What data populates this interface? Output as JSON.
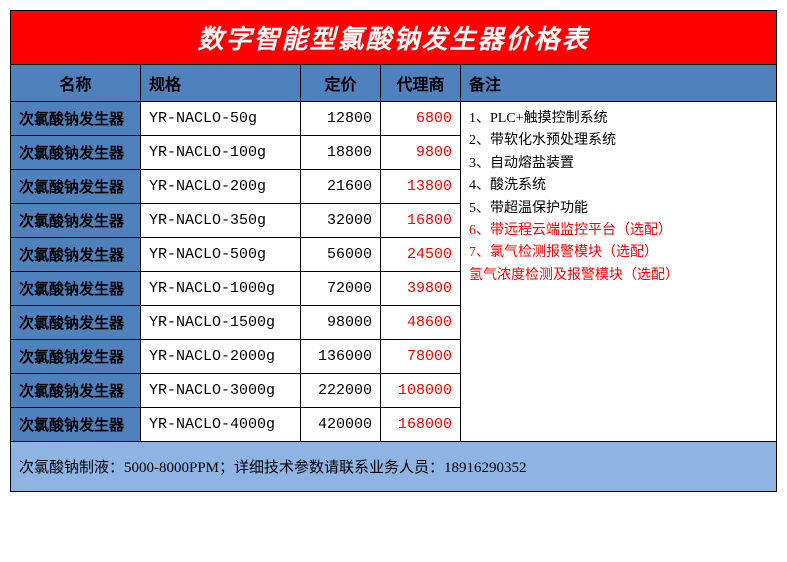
{
  "title": "数字智能型氯酸钠发生器价格表",
  "columns": {
    "name": "名称",
    "spec": "规格",
    "price": "定价",
    "agent": "代理商",
    "remark": "备注"
  },
  "rows": [
    {
      "name": "次氯酸钠发生器",
      "spec": "YR-NACLO-50g",
      "price": "12800",
      "agent": "6800"
    },
    {
      "name": "次氯酸钠发生器",
      "spec": "YR-NACLO-100g",
      "price": "18800",
      "agent": "9800"
    },
    {
      "name": "次氯酸钠发生器",
      "spec": "YR-NACLO-200g",
      "price": "21600",
      "agent": "13800"
    },
    {
      "name": "次氯酸钠发生器",
      "spec": "YR-NACLO-350g",
      "price": "32000",
      "agent": "16800"
    },
    {
      "name": "次氯酸钠发生器",
      "spec": "YR-NACLO-500g",
      "price": "56000",
      "agent": "24500"
    },
    {
      "name": "次氯酸钠发生器",
      "spec": "YR-NACLO-1000g",
      "price": "72000",
      "agent": "39800"
    },
    {
      "name": "次氯酸钠发生器",
      "spec": "YR-NACLO-1500g",
      "price": "98000",
      "agent": "48600"
    },
    {
      "name": "次氯酸钠发生器",
      "spec": "YR-NACLO-2000g",
      "price": "136000",
      "agent": "78000"
    },
    {
      "name": "次氯酸钠发生器",
      "spec": "YR-NACLO-3000g",
      "price": "222000",
      "agent": "108000"
    },
    {
      "name": "次氯酸钠发生器",
      "spec": "YR-NACLO-4000g",
      "price": "420000",
      "agent": "168000"
    }
  ],
  "remarks": [
    {
      "text": "1、PLC+触摸控制系统",
      "red": false
    },
    {
      "text": "2、带软化水预处理系统",
      "red": false
    },
    {
      "text": "3、自动熔盐装置",
      "red": false
    },
    {
      "text": "4、酸洗系统",
      "red": false
    },
    {
      "text": "5、带超温保护功能",
      "red": false
    },
    {
      "text": "6、带远程云端监控平台（选配）",
      "red": true
    },
    {
      "text": "7、氯气检测报警模块（选配）",
      "red": true
    },
    {
      "text": "氢气浓度检测及报警模块（选配）",
      "red": true
    }
  ],
  "footer": "次氯酸钠制液：5000-8000PPM；详细技术参数请联系业务人员：18916290352",
  "colors": {
    "title_bg": "#ff0000",
    "header_bg": "#4f81bd",
    "name_bg": "#4f81bd",
    "footer_bg": "#8db4e2",
    "agent_text": "#ff0000",
    "remark_red": "#ff0000"
  }
}
